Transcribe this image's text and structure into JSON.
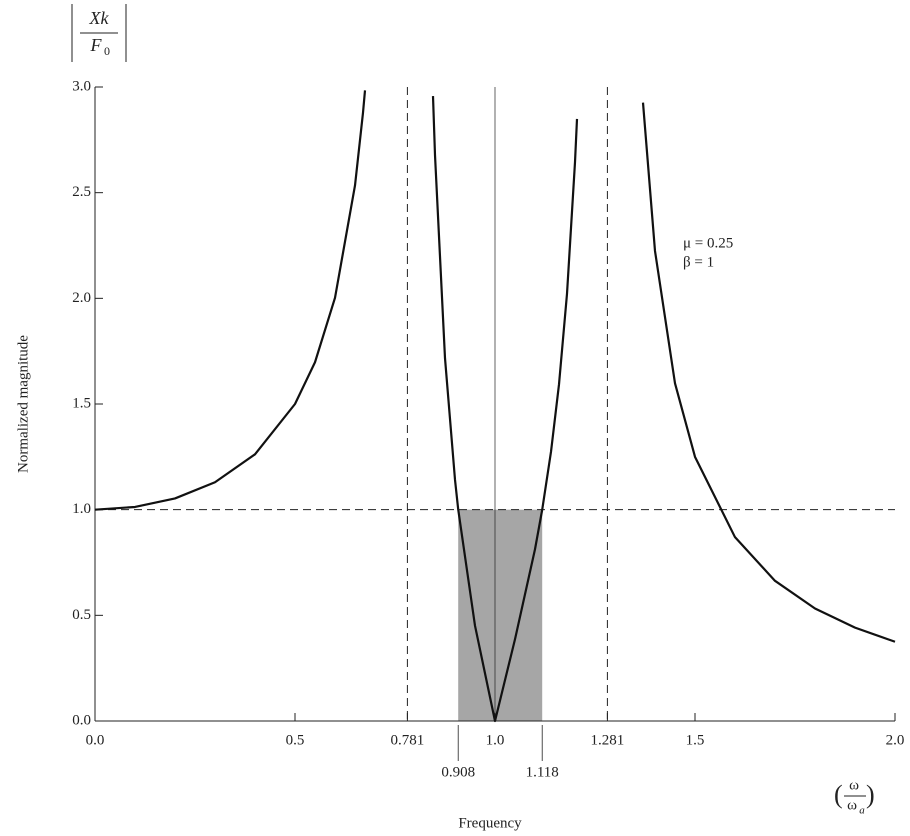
{
  "chart_data": {
    "type": "line",
    "y_label": "Normalized magnitude",
    "x_label": "Frequency",
    "y_symbol": {
      "numerator": "Xk",
      "denominator": "F",
      "denominator_sub": "0"
    },
    "x_symbol": {
      "numerator": "ω",
      "denominator": "ω",
      "denominator_sub": "a"
    },
    "annotations": [
      "μ = 0.25",
      "β = 1"
    ],
    "x": [
      0,
      0.1,
      0.2,
      0.3,
      0.4,
      0.5,
      0.55,
      0.6,
      0.65,
      0.67,
      0.675,
      0.781,
      0.845,
      0.85,
      0.875,
      0.9,
      0.908,
      0.95,
      1.0,
      1.05,
      1.1,
      1.118,
      1.14,
      1.16,
      1.18,
      1.2,
      1.205,
      1.281,
      1.37,
      1.4,
      1.45,
      1.5,
      1.6,
      1.7,
      1.8,
      1.9,
      2.0
    ],
    "series": [
      {
        "color": "#111111",
        "values": [
          1,
          1.0127,
          1.0531,
          1.1296,
          1.262,
          1.5,
          1.6975,
          2.0025,
          2.534,
          2.878,
          2.984,
          null,
          2.957,
          2.678,
          1.717,
          1.1418,
          1.0013,
          0.4511,
          0,
          0.3866,
          0.8127,
          0.9996,
          1.2741,
          1.5929,
          2.0214,
          2.644,
          2.849,
          null,
          2.926,
          2.224,
          1.598,
          1.25,
          0.8698,
          0.6633,
          0.5324,
          0.4417,
          0.375
        ]
      }
    ],
    "xlim": [
      0,
      2
    ],
    "ylim": [
      0,
      3
    ],
    "xticks": [
      {
        "value": 0,
        "label": "0.0"
      },
      0.5,
      0.781,
      {
        "value": 1,
        "label": "1.0"
      },
      1.281,
      1.5,
      {
        "value": 2,
        "label": "2.0"
      }
    ],
    "yticks": [
      {
        "value": 0,
        "label": "0.0"
      },
      0.5,
      {
        "value": 1,
        "label": "1.0"
      },
      1.5,
      {
        "value": 2,
        "label": "2.0"
      },
      2.5,
      {
        "value": 3,
        "label": "3.0"
      }
    ],
    "vertical_lines": [
      {
        "x": 0.781,
        "style": "dashed"
      },
      {
        "x": 1.0,
        "style": "solid"
      },
      {
        "x": 1.281,
        "style": "dashed"
      }
    ],
    "horizontal_lines": [
      {
        "y": 1.0,
        "style": "dashed"
      }
    ],
    "shaded_band": {
      "x": [
        0.908,
        1.118
      ],
      "y_top": 1.0,
      "color": "#a6a6a6"
    }
  }
}
